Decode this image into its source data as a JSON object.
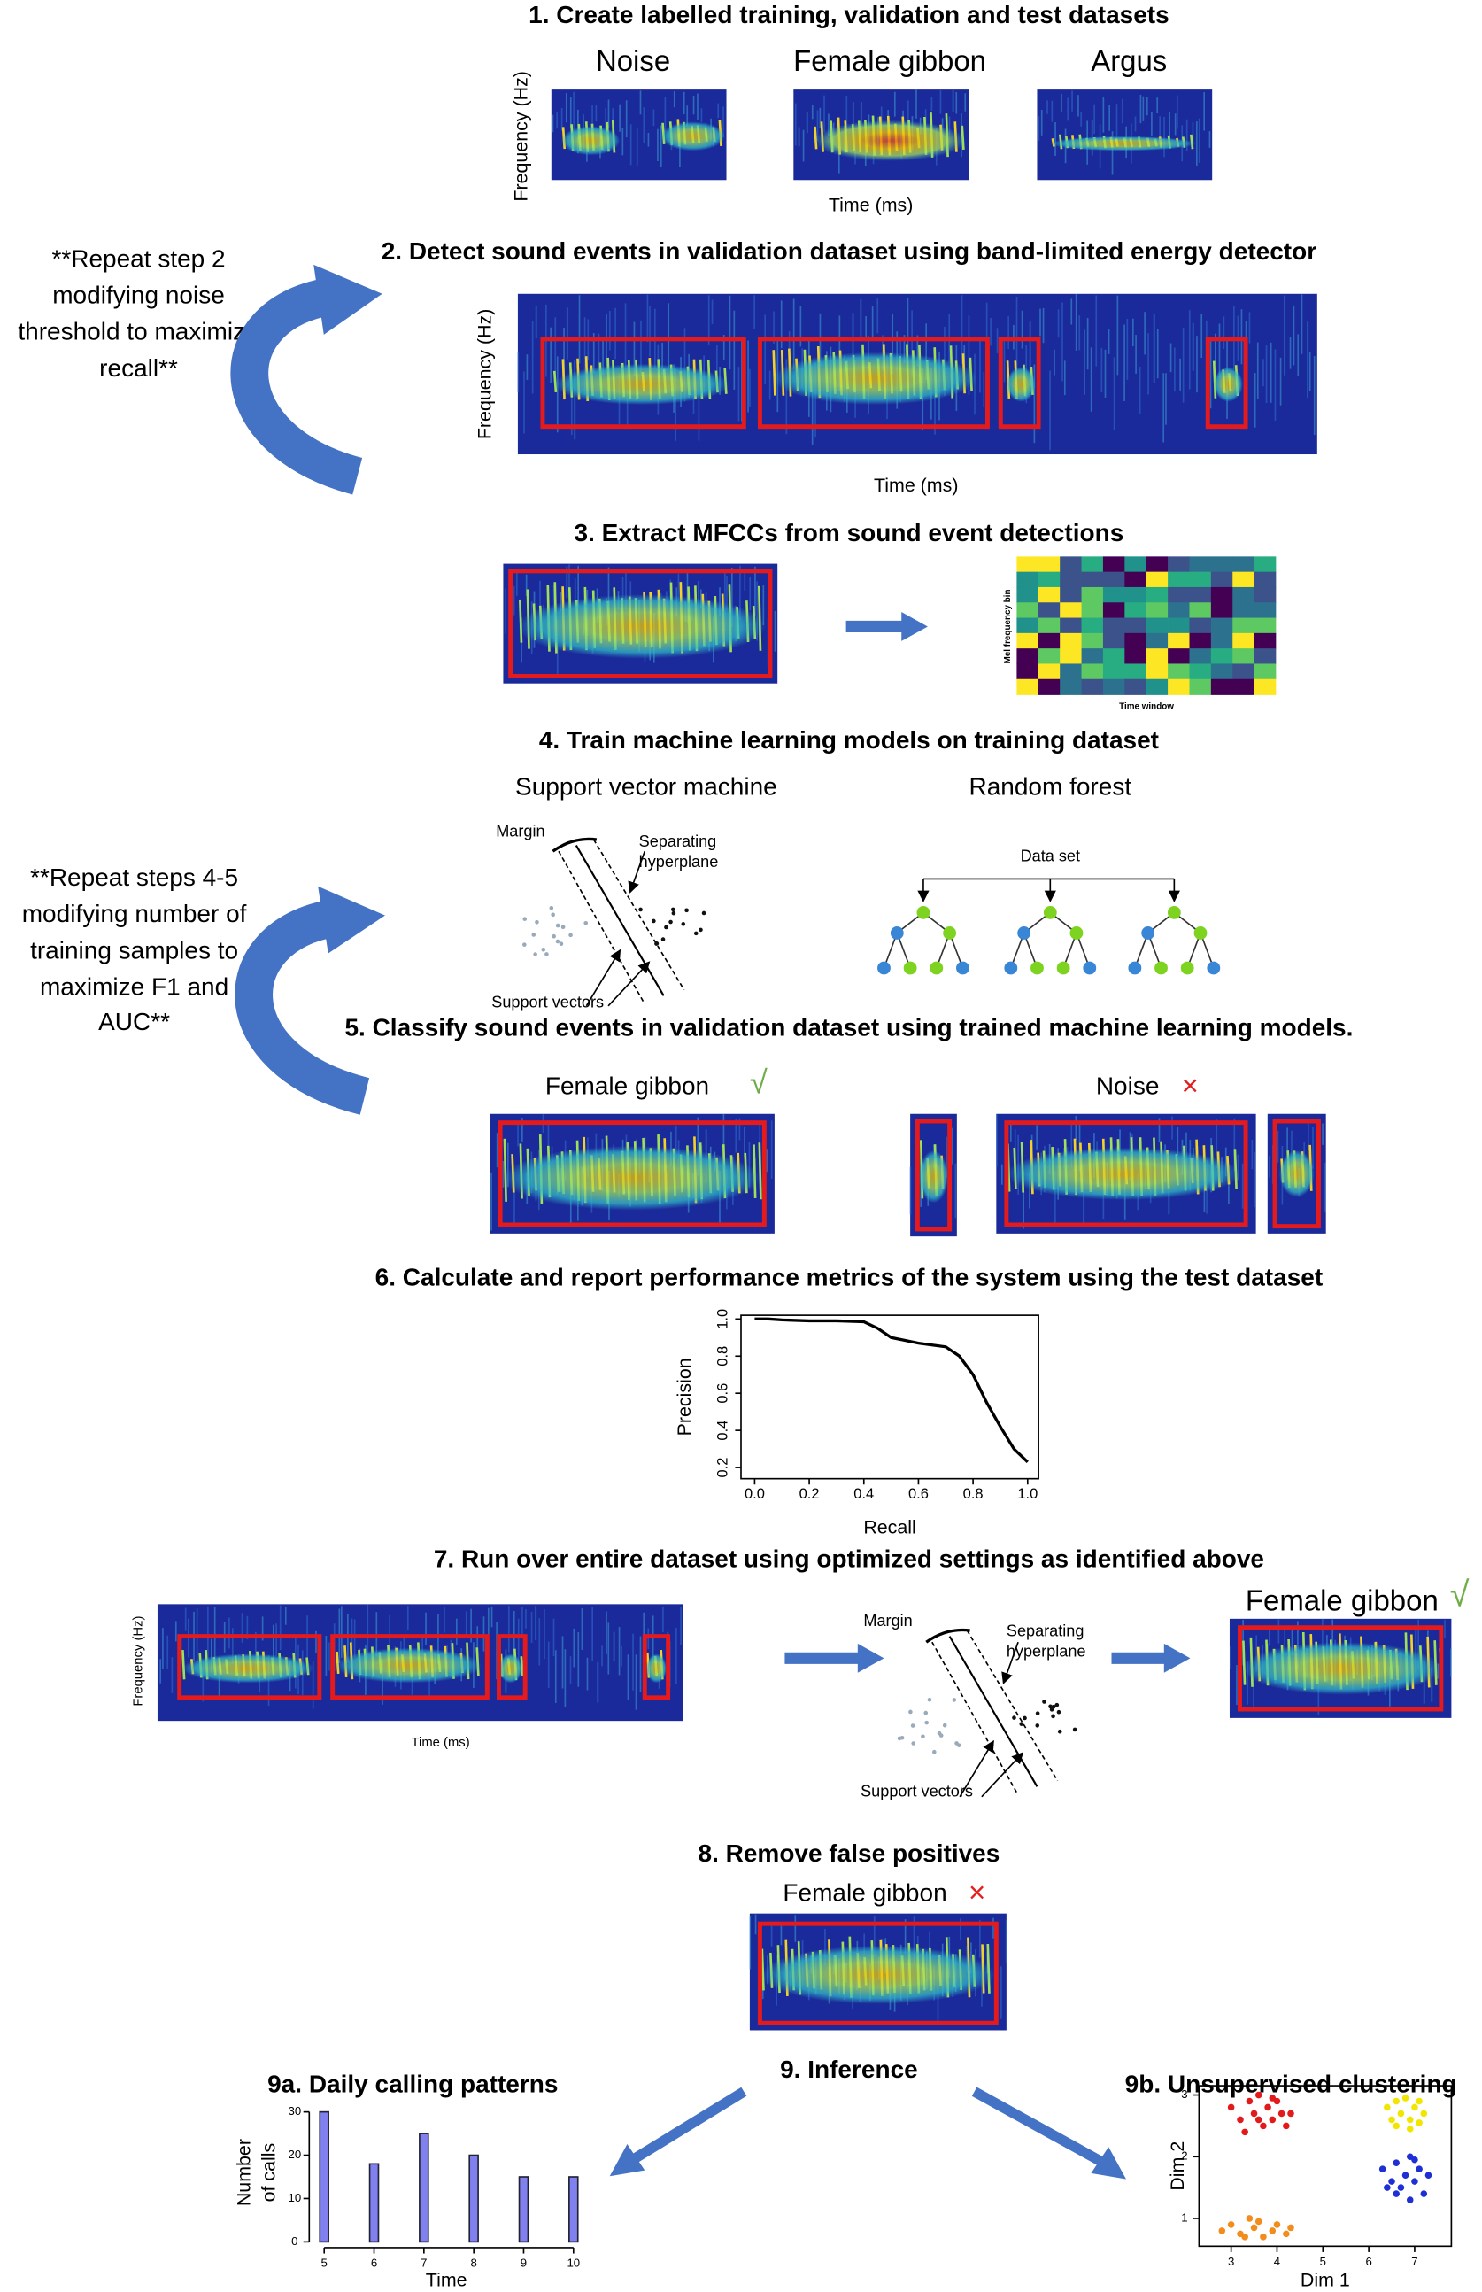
{
  "steps": [
    {
      "title": "1. Create labelled training, validation and test datasets",
      "labels": [
        "Noise",
        "Female gibbon",
        "Argus"
      ],
      "y_label": "Frequency (Hz)",
      "x_label": "Time (ms)"
    },
    {
      "title": "2. Detect sound events in validation dataset using band-limited energy detector",
      "y_label": "Frequency (Hz)",
      "x_label": "Time (ms)"
    },
    {
      "title": "3. Extract MFCCs from sound event detections",
      "y_label": "Mel frequency bin",
      "x_label": "Time window"
    },
    {
      "title": "4. Train machine learning models on training dataset",
      "models": [
        "Support vector machine",
        "Random forest"
      ],
      "svm_labels": {
        "margin": "Margin",
        "hyperplane": [
          "Separating",
          "hyperplane"
        ],
        "support": "Support vectors"
      },
      "forest_label": "Data set"
    },
    {
      "title": "5. Classify sound events in validation dataset using trained machine learning models.",
      "classes": [
        {
          "label": "Female gibbon",
          "mark": "√"
        },
        {
          "label": "Noise",
          "mark": "×"
        }
      ]
    },
    {
      "title": "6. Calculate and report performance metrics of the system using the test dataset"
    },
    {
      "title": "7. Run over entire dataset using optimized settings as identified above",
      "y_label": "Frequency (Hz)",
      "x_label": "Time (ms)",
      "svm_labels": {
        "margin": "Margin",
        "hyperplane": [
          "Separating",
          "hyperplane"
        ],
        "support": "Support vectors"
      },
      "result": {
        "label": "Female gibbon",
        "mark": "√"
      }
    },
    {
      "title": "8. Remove false positives",
      "result": {
        "label": "Female gibbon",
        "mark": "×"
      }
    },
    {
      "title": "9. Inference"
    }
  ],
  "repeat_notes": [
    {
      "lines": [
        "**Repeat step 2",
        "modifying noise",
        "threshold to maximize",
        "recall**"
      ]
    },
    {
      "lines": [
        "**Repeat steps 4-5",
        "modifying number of",
        "training samples to",
        "maximize F1 and",
        "AUC**"
      ]
    }
  ],
  "chart_data": [
    {
      "type": "line",
      "xlabel": "Recall",
      "ylabel": "Precision",
      "color": "#000000",
      "x": [
        0,
        0.05,
        0.1,
        0.2,
        0.3,
        0.4,
        0.45,
        0.5,
        0.6,
        0.7,
        0.75,
        0.8,
        0.85,
        0.9,
        0.95,
        1.0
      ],
      "y": [
        1.0,
        1.0,
        0.995,
        0.99,
        0.99,
        0.985,
        0.95,
        0.9,
        0.87,
        0.85,
        0.8,
        0.7,
        0.55,
        0.42,
        0.3,
        0.23
      ],
      "xlim": [
        -0.05,
        1.04
      ],
      "ylim": [
        0.14,
        1.02
      ],
      "xticks": [
        {
          "value": 0,
          "label": "0.0"
        },
        0.2,
        0.4,
        0.6,
        0.8,
        {
          "value": 1,
          "label": "1.0"
        }
      ],
      "yticks": [
        0.2,
        0.4,
        0.6,
        0.8,
        {
          "value": 1,
          "label": "1.0"
        }
      ]
    },
    {
      "type": "bar",
      "title": "9a. Daily calling patterns",
      "ylabel_lines": [
        "Number",
        "of calls"
      ],
      "xlabel": "Time",
      "color": "#8080ee",
      "x": [
        5,
        6,
        7,
        8,
        9,
        10
      ],
      "values": [
        30,
        18,
        25,
        20,
        15,
        15
      ],
      "xlim": [
        4.7,
        10.2
      ],
      "ylim": [
        0,
        32
      ],
      "xticks": [
        5,
        6,
        7,
        8,
        9,
        10
      ],
      "yticks": [
        0,
        10,
        20,
        30
      ]
    },
    {
      "type": "scatter",
      "title": "9b. Unsupervised clustering",
      "xlabel": "Dim 1",
      "ylabel": "Dim 2",
      "xlim": [
        2.3,
        7.8
      ],
      "ylim": [
        0.55,
        3.15
      ],
      "xticks": [
        3,
        4,
        5,
        6,
        7
      ],
      "yticks": [
        1,
        2,
        3
      ],
      "series": [
        {
          "color": "#e31a1c",
          "x": [
            3.0,
            3.2,
            3.4,
            3.5,
            3.6,
            3.7,
            3.8,
            3.9,
            4.0,
            4.1,
            4.2,
            3.3,
            3.6,
            3.9,
            4.3
          ],
          "y": [
            2.8,
            2.6,
            2.9,
            2.7,
            3.0,
            2.5,
            2.8,
            2.6,
            2.9,
            2.7,
            2.5,
            2.4,
            2.6,
            2.95,
            2.7
          ]
        },
        {
          "color": "#f2e600",
          "x": [
            6.4,
            6.5,
            6.6,
            6.7,
            6.8,
            6.9,
            7.0,
            7.1,
            7.2,
            6.6,
            6.9,
            7.1
          ],
          "y": [
            2.8,
            2.6,
            2.9,
            2.7,
            2.95,
            2.6,
            2.8,
            2.9,
            2.7,
            2.5,
            2.45,
            2.55
          ]
        },
        {
          "color": "#1f2fd6",
          "x": [
            6.3,
            6.5,
            6.6,
            6.7,
            6.8,
            6.9,
            7.0,
            7.1,
            7.2,
            7.3,
            6.6,
            6.9,
            7.0,
            6.4
          ],
          "y": [
            1.8,
            1.6,
            1.9,
            1.5,
            1.7,
            2.0,
            1.6,
            1.8,
            1.4,
            1.7,
            1.4,
            1.3,
            1.95,
            1.5
          ]
        },
        {
          "color": "#f28c1c",
          "x": [
            2.8,
            3.0,
            3.2,
            3.4,
            3.5,
            3.6,
            3.7,
            3.9,
            4.0,
            4.2,
            4.3,
            3.3
          ],
          "y": [
            0.8,
            0.9,
            0.75,
            1.0,
            0.85,
            0.95,
            0.7,
            0.8,
            0.9,
            0.75,
            0.85,
            0.7
          ]
        }
      ]
    }
  ]
}
